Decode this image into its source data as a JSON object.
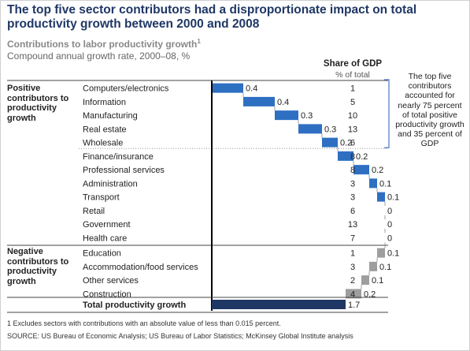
{
  "header": {
    "title": "The top five sector contributors had a disproportionate impact on total productivity growth between 2000 and 2008",
    "subtitle": "Contributions to labor productivity growth",
    "subtitle_footnote_mark": "1",
    "measure": "Compound annual growth rate, 2000–08, %"
  },
  "gdp_header": {
    "title": "Share of GDP",
    "unit": "% of total"
  },
  "groups": {
    "positive": "Positive contributors to productivity growth",
    "negative": "Negative contributors to productivity growth"
  },
  "annotation": "The top five contributors accounted for nearly 75 percent of total positive productivity growth and 35 percent of GDP",
  "footnote": "1  Excludes sectors with contributions with an absolute value of less than 0.015 percent.",
  "source": "SOURCE: US Bureau of Economic Analysis; US Bureau of Labor Statistics; McKinsey Global Institute analysis",
  "colors": {
    "top_five": "#2e6fc2",
    "positive": "#2e6fc2",
    "negative": "#9e9e9e",
    "total": "#1f3765",
    "title": "#1f3765",
    "bracket": "#4a78c2"
  },
  "chart_data": {
    "type": "waterfall",
    "categories": [
      "Computers/electronics",
      "Information",
      "Manufacturing",
      "Real estate",
      "Wholesale",
      "Finance/insurance",
      "Professional services",
      "Administration",
      "Transport",
      "Retail",
      "Government",
      "Health care",
      "Education",
      "Accommodation/food services",
      "Other services",
      "Construction"
    ],
    "values": [
      0.4,
      0.4,
      0.3,
      0.3,
      0.2,
      0.2,
      0.2,
      0.1,
      0.1,
      0,
      0,
      0,
      -0.1,
      -0.1,
      -0.1,
      -0.2
    ],
    "value_labels": [
      "0.4",
      "0.4",
      "0.3",
      "0.3",
      "0.2",
      "0.2",
      "0.2",
      "0.1",
      "0.1",
      "0",
      "0",
      "0",
      "0.1",
      "0.1",
      "0.1",
      "0.2"
    ],
    "share_of_gdp": [
      "1",
      "5",
      "10",
      "13",
      "6",
      "8",
      "8",
      "3",
      "3",
      "6",
      "13",
      "7",
      "1",
      "3",
      "2",
      "4"
    ],
    "total": {
      "label": "Total productivity growth",
      "value": 1.7,
      "value_label": "1.7"
    },
    "top_five_count": 5,
    "negative_start_index": 12
  }
}
